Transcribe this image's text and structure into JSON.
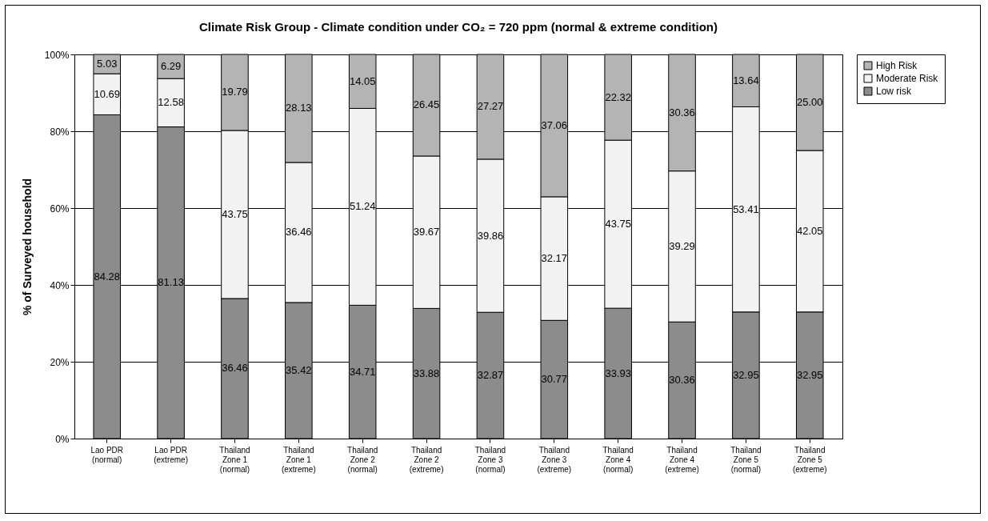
{
  "chart_data": {
    "type": "bar",
    "stacked": true,
    "title": "Climate Risk Group - Climate condition under CO₂ = 720 ppm (normal & extreme condition)",
    "ylabel": "% of Surveyed household",
    "categories": [
      "Lao PDR (normal)",
      "Lao PDR (extreme)",
      "Thailand Zone 1 (normal)",
      "Thailand Zone 1 (extreme)",
      "Thailand Zone 2 (normal)",
      "Thailand Zone 2 (extreme)",
      "Thailand Zone 3 (normal)",
      "Thailand Zone 3 (extreme)",
      "Thailand Zone 4 (normal)",
      "Thailand Zone 4 (extreme)",
      "Thailand Zone 5 (normal)",
      "Thailand Zone 5 (extreme)"
    ],
    "series": [
      {
        "name": "Low risk",
        "color": "#8c8c8c",
        "values": [
          84.28,
          81.13,
          36.46,
          35.42,
          34.71,
          33.88,
          32.87,
          30.77,
          33.93,
          30.36,
          32.95,
          32.95
        ],
        "value_labels": [
          "84.28",
          "81.13",
          "36.46",
          "35.42",
          "34.71",
          "33.88",
          "32.87",
          "30.77",
          "33.93",
          "30.36",
          "32.95",
          "32.95"
        ]
      },
      {
        "name": "Moderate Risk",
        "color": "#f2f2f2",
        "values": [
          10.69,
          12.58,
          43.75,
          36.46,
          51.24,
          39.67,
          39.86,
          32.17,
          43.75,
          39.29,
          53.41,
          42.05
        ],
        "value_labels": [
          "10.69",
          "12.58",
          "43.75",
          "36.46",
          "51.24",
          "39.67",
          "39.86",
          "32.17",
          "43.75",
          "39.29",
          "53.41",
          "42.05"
        ]
      },
      {
        "name": "High Risk",
        "color": "#b4b4b4",
        "values": [
          5.03,
          6.29,
          19.79,
          28.13,
          14.05,
          26.45,
          27.27,
          37.06,
          22.32,
          30.36,
          13.64,
          25.0
        ],
        "value_labels": [
          "5.03",
          "6.29",
          "19.79",
          "28.13",
          "14.05",
          "26.45",
          "27.27",
          "37.06",
          "22.32",
          "30.36",
          "13.64",
          "25.00"
        ]
      }
    ],
    "ylim": [
      0,
      100
    ],
    "yticks": [
      {
        "value": 0,
        "label": "0%"
      },
      {
        "value": 20,
        "label": "20%"
      },
      {
        "value": 40,
        "label": "40%"
      },
      {
        "value": 60,
        "label": "60%"
      },
      {
        "value": 80,
        "label": "80%"
      },
      {
        "value": 100,
        "label": "100%"
      }
    ],
    "grid": "y",
    "legend": "right"
  }
}
